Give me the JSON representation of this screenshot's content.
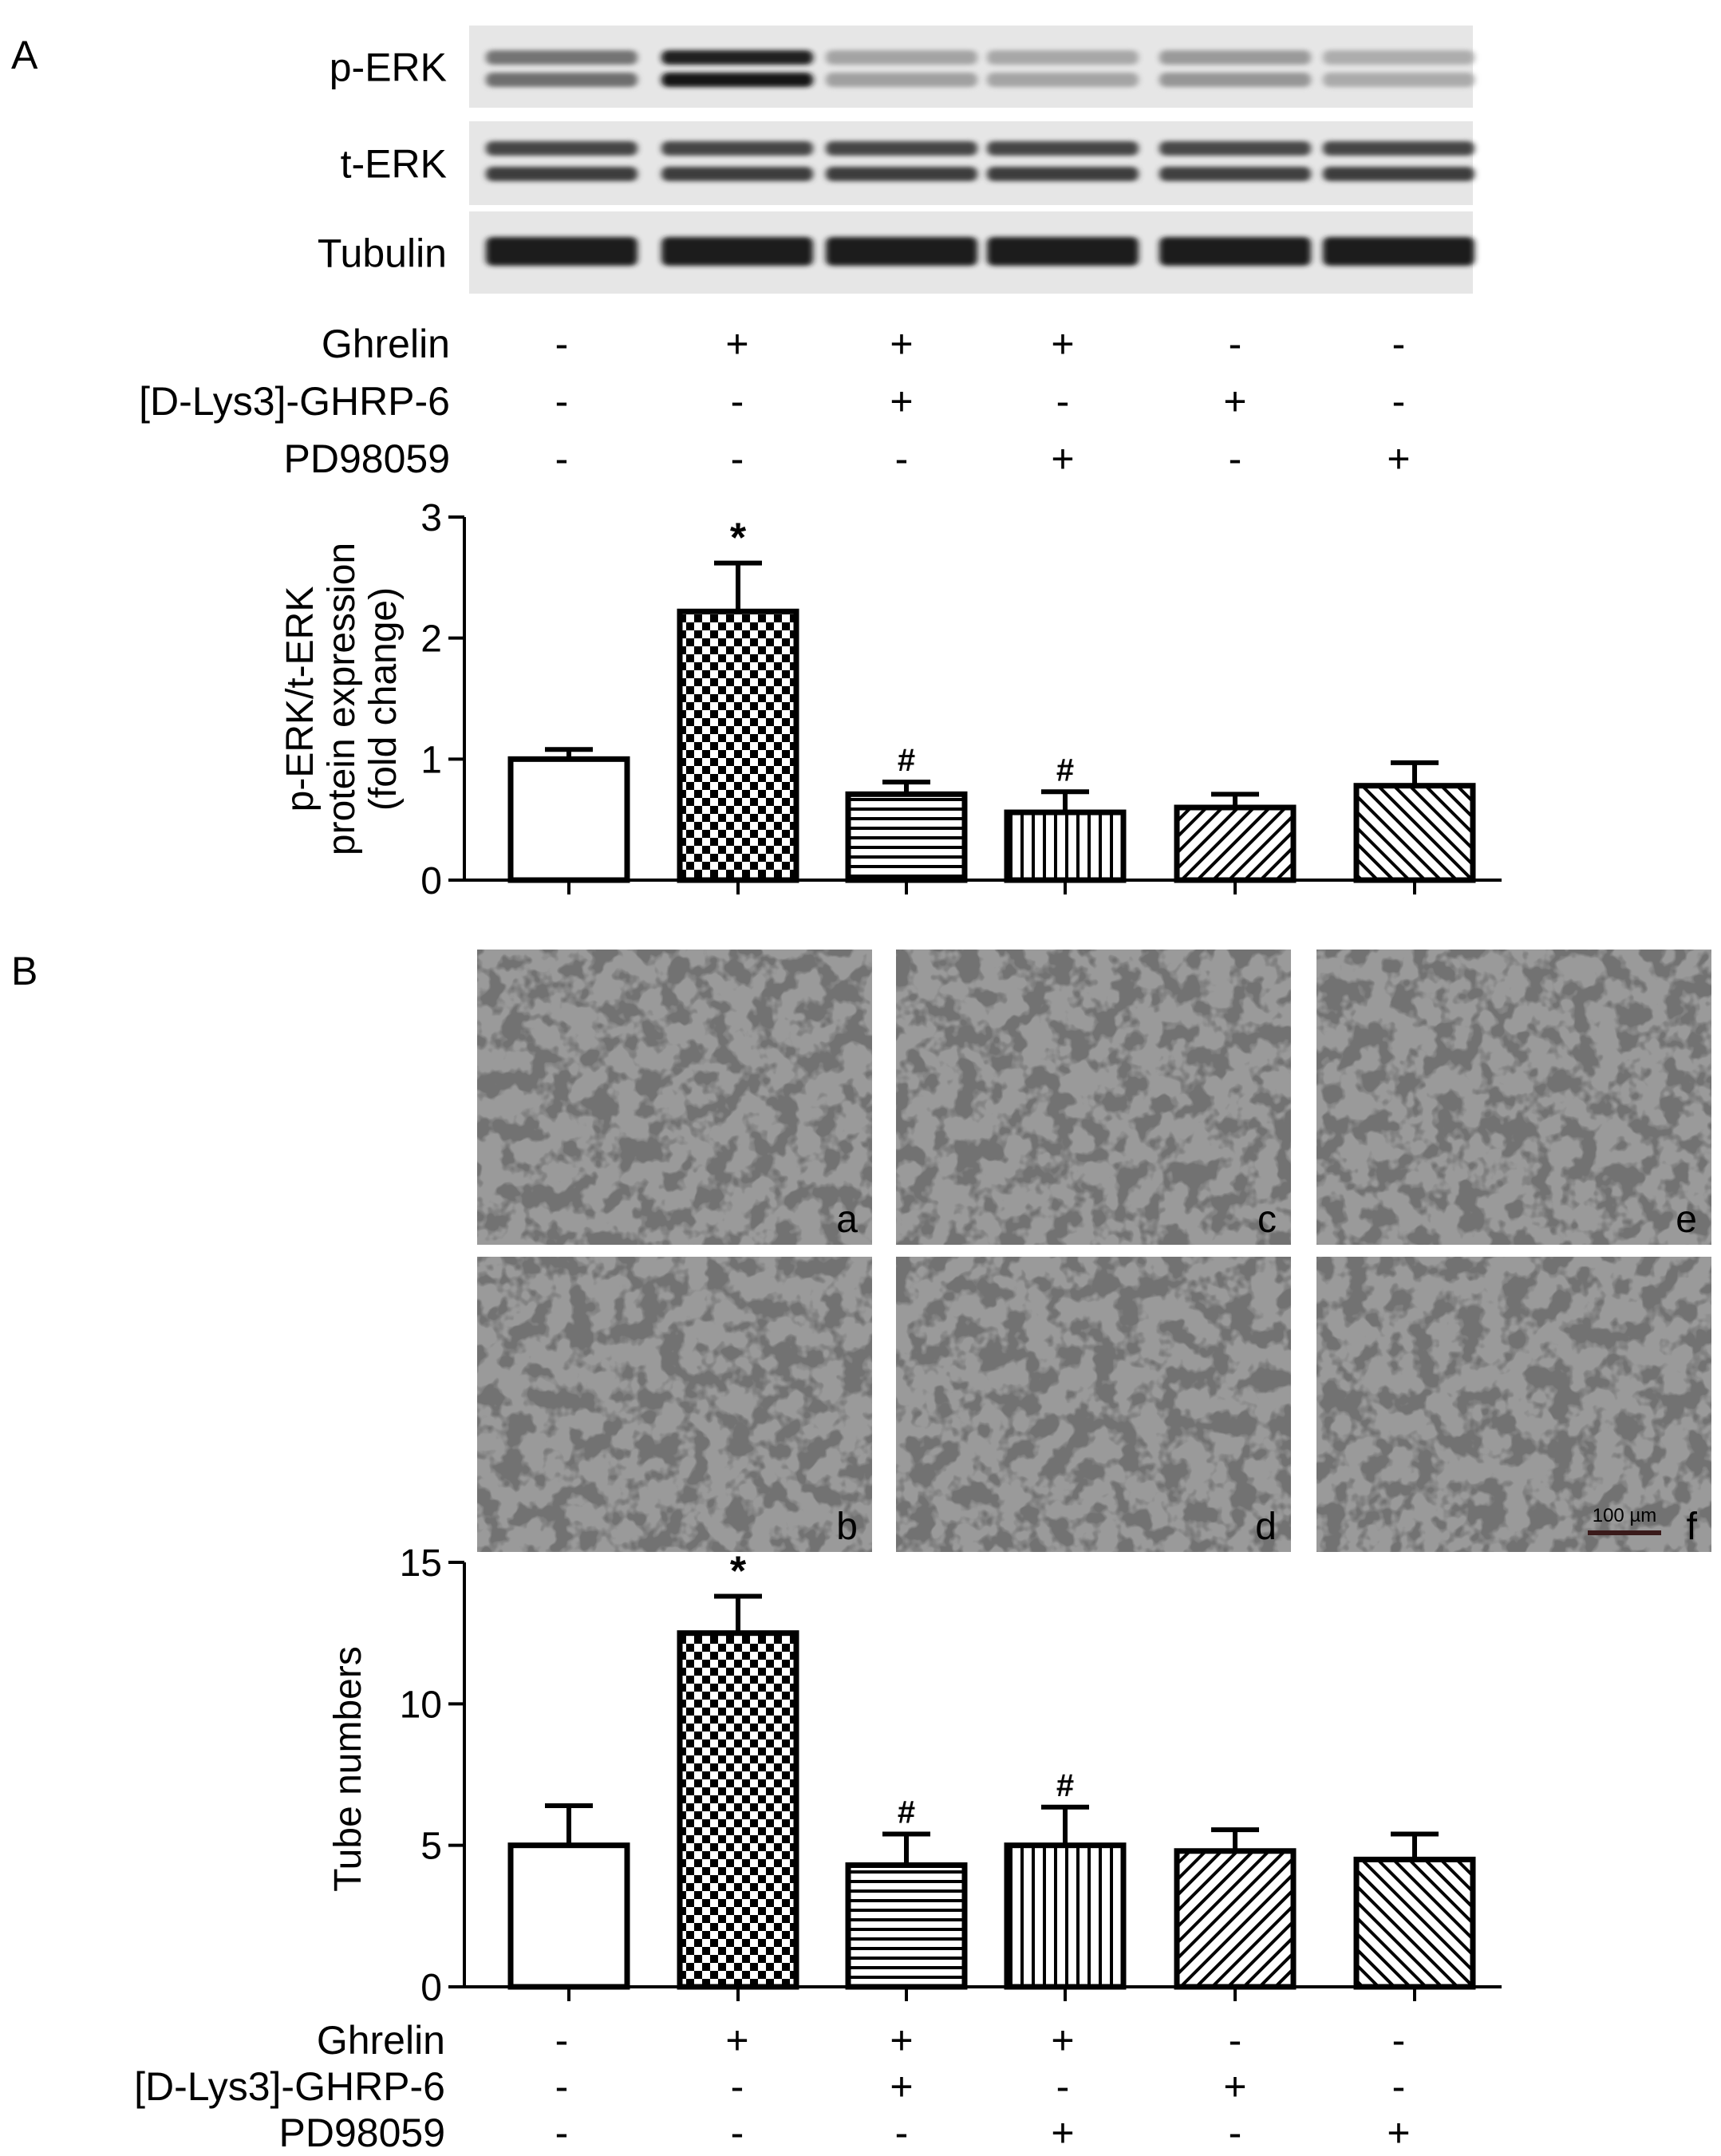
{
  "panel_a": {
    "label": "A",
    "blot": {
      "rows": [
        {
          "name": "p-ERK",
          "bands": 2
        },
        {
          "name": "t-ERK",
          "bands": 2
        },
        {
          "name": "Tubulin",
          "bands": 1
        }
      ],
      "band_intensity": {
        "p-ERK": [
          0.55,
          1.0,
          0.3,
          0.28,
          0.35,
          0.25
        ],
        "t-ERK": [
          0.8,
          0.8,
          0.8,
          0.8,
          0.78,
          0.8
        ],
        "Tubulin": [
          0.95,
          0.95,
          0.95,
          0.95,
          0.95,
          0.95
        ]
      }
    },
    "conditions": {
      "labels": [
        "Ghrelin",
        "[D-Lys3]-GHRP-6",
        "PD98059"
      ],
      "rows": [
        [
          "-",
          "+",
          "+",
          "+",
          "-",
          "-"
        ],
        [
          "-",
          "-",
          "+",
          "-",
          "+",
          "-"
        ],
        [
          "-",
          "-",
          "-",
          "+",
          "-",
          "+"
        ]
      ]
    }
  },
  "panel_b": {
    "label": "B",
    "micrographs": {
      "tiles": [
        "a",
        "c",
        "e",
        "b",
        "d",
        "f"
      ],
      "scale_bar": "100 µm"
    },
    "conditions": {
      "labels": [
        "Ghrelin",
        "[D-Lys3]-GHRP-6",
        "PD98059"
      ],
      "rows": [
        [
          "-",
          "+",
          "+",
          "+",
          "-",
          "-"
        ],
        [
          "-",
          "-",
          "+",
          "-",
          "+",
          "-"
        ],
        [
          "-",
          "-",
          "-",
          "+",
          "-",
          "+"
        ]
      ]
    }
  },
  "chart_data": [
    {
      "type": "bar",
      "panel": "A",
      "ylabel_lines": [
        "p-ERK/t-ERK",
        "protein expression",
        "(fold change)"
      ],
      "ylim": [
        0,
        3
      ],
      "yticks": [
        "0",
        "1",
        "2",
        "3"
      ],
      "values": [
        1.0,
        2.22,
        0.71,
        0.56,
        0.6,
        0.78
      ],
      "errors": [
        0.08,
        0.4,
        0.1,
        0.17,
        0.11,
        0.19
      ],
      "annotations": [
        "",
        "*",
        "#",
        "#",
        "",
        ""
      ],
      "patterns": [
        "none",
        "checker",
        "hlines",
        "vlines",
        "diag",
        "diag-rev"
      ],
      "grid": false
    },
    {
      "type": "bar",
      "panel": "B",
      "ylabel": "Tube numbers",
      "ylim": [
        0,
        15
      ],
      "yticks": [
        "0",
        "5",
        "10",
        "15"
      ],
      "values": [
        5.0,
        12.5,
        4.3,
        5.0,
        4.8,
        4.5
      ],
      "errors": [
        1.4,
        1.3,
        1.1,
        1.35,
        0.75,
        0.9
      ],
      "annotations": [
        "",
        "*",
        "#",
        "#",
        "",
        ""
      ],
      "patterns": [
        "none",
        "checker",
        "hlines",
        "vlines",
        "diag",
        "diag-rev"
      ],
      "grid": false
    }
  ]
}
